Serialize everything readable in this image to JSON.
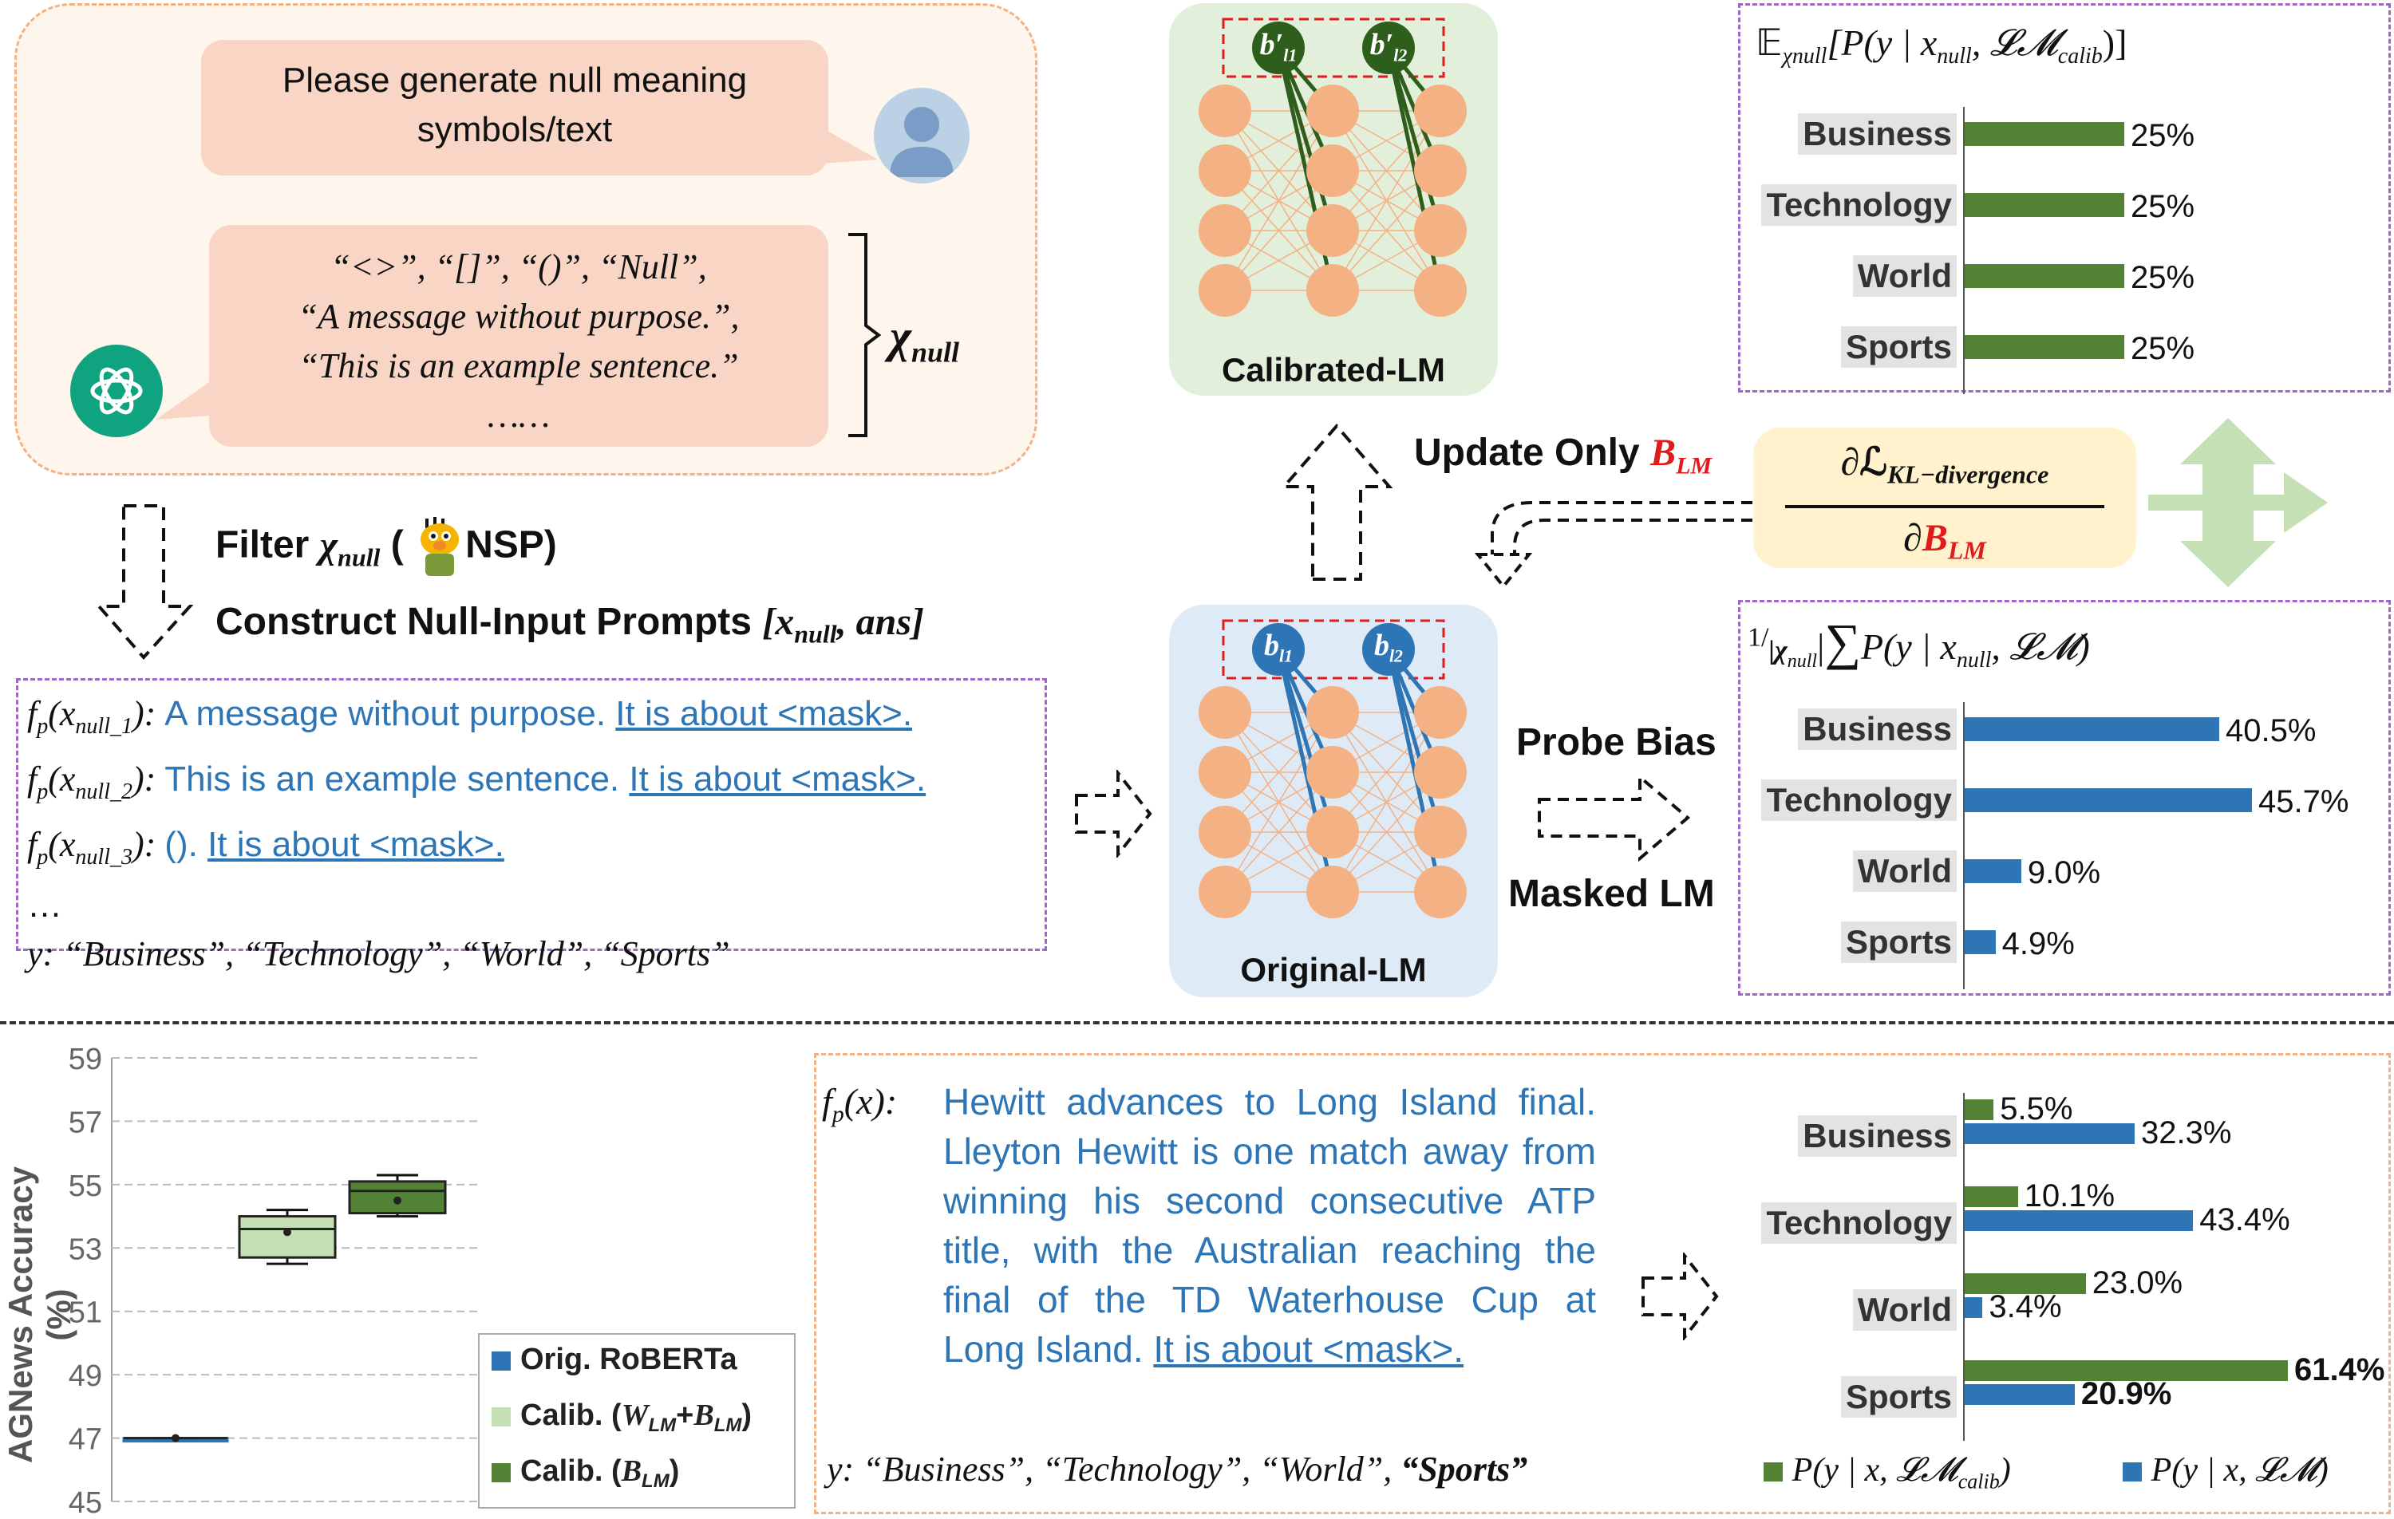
{
  "chat": {
    "prompt_line1": "Please generate null meaning",
    "prompt_line2": "symbols/text",
    "reply_line1": "“<>”, “[]”, “()”, “Null”,",
    "reply_line2": "“A message without purpose.”,",
    "reply_line3": "“This is an example sentence.”",
    "reply_line4": "……",
    "brace_label": "χ",
    "brace_label_sub": "null"
  },
  "steps": {
    "filter_text": "Filter",
    "filter_var": "χ",
    "filter_var_sub": "null",
    "filter_paren_open": " (",
    "filter_nsp": "NSP)",
    "construct_text": "Construct Null-Input Prompts",
    "construct_var": "[x",
    "construct_var_sub": "null",
    "construct_var_end": ", ans]"
  },
  "null_prompts": {
    "rows": [
      {
        "fn": "f",
        "fn_sub": "p",
        "arg": "(x",
        "arg_sub": "null_1",
        "arg_end": "): ",
        "text": "A message without purpose. ",
        "mask": "It is about <mask>."
      },
      {
        "fn": "f",
        "fn_sub": "p",
        "arg": "(x",
        "arg_sub": "null_2",
        "arg_end": "): ",
        "text": "This is an example sentence. ",
        "mask": "It is about <mask>."
      },
      {
        "fn": "f",
        "fn_sub": "p",
        "arg": "(x",
        "arg_sub": "null_3",
        "arg_end": "): ",
        "text": "(). ",
        "mask": "It is about <mask>."
      }
    ],
    "ellipsis": "…",
    "labels_prefix": "y",
    "labels": ": “Business”, “Technology”, “World”, “Sports”"
  },
  "networks": {
    "calibrated_title": "Calibrated-LM",
    "original_title": "Original-LM",
    "calib_bias1": "b′",
    "calib_bias1_sub": "l1",
    "calib_bias2": "b′",
    "calib_bias2_sub": "l2",
    "orig_bias1": "b",
    "orig_bias1_sub": "l1",
    "orig_bias2": "b",
    "orig_bias2_sub": "l2"
  },
  "middle": {
    "update_text": "Update Only ",
    "update_var": "B",
    "update_var_sub": "LM",
    "grad_num": "∂ℒ",
    "grad_num_sub": "KL−divergence",
    "grad_den": "∂",
    "grad_den_var": "B",
    "grad_den_sub": "LM",
    "probe_bias": "Probe Bias",
    "masked_lm": "Masked LM"
  },
  "calib_panel": {
    "title_e": "𝔼",
    "title_e_sub": "χnull",
    "title_rest": "[P(y | x",
    "title_rest_sub": "null",
    "title_rest2": ", 𝓛𝓜",
    "title_rest2_sub": "calib",
    "title_end": ")]",
    "categories": [
      "Business",
      "Technology",
      "World",
      "Sports"
    ],
    "values": [
      25,
      25,
      25,
      25
    ],
    "labels": [
      "25%",
      "25%",
      "25%",
      "25%"
    ],
    "color": "#548235"
  },
  "orig_panel": {
    "title_frac": "1/",
    "title_chi": "|χ",
    "title_chi_sub": "null",
    "title_chi_end": "|",
    "title_sum": "∑",
    "title_rest": "P(y | x",
    "title_rest_sub": "null",
    "title_rest2": ", 𝓛𝓜)",
    "categories": [
      "Business",
      "Technology",
      "World",
      "Sports"
    ],
    "values": [
      40.5,
      45.7,
      9.0,
      4.9
    ],
    "labels": [
      "40.5%",
      "45.7%",
      "9.0%",
      "4.9%"
    ],
    "color": "#2e75b6"
  },
  "boxplot": {
    "ylabel": "AGNews Accuracy (%)",
    "ticks": [
      "59",
      "57",
      "55",
      "53",
      "51",
      "49",
      "47",
      "45"
    ],
    "ylim": [
      45,
      59
    ],
    "legend": [
      {
        "text": "Orig. RoBERTa",
        "color": "#2e75b6"
      },
      {
        "text": "Calib. (",
        "var": "W",
        "sub": "LM",
        "plus": "+",
        "var2": "B",
        "sub2": "LM",
        "end": ")",
        "color": "#c5e0b4"
      },
      {
        "text": "Calib. (",
        "var": "B",
        "sub": "LM",
        "end": ")",
        "color": "#548235"
      }
    ]
  },
  "chart_data": {
    "type": "box",
    "ylabel": "AGNews Accuracy (%)",
    "ylim": [
      45,
      59
    ],
    "series": [
      {
        "name": "Orig. RoBERTa",
        "min": 47.0,
        "q1": 47.0,
        "median": 47.0,
        "q3": 47.0,
        "max": 47.0,
        "mean": 47.0
      },
      {
        "name": "Calib. (W_LM+B_LM)",
        "min": 52.5,
        "q1": 52.7,
        "median": 53.6,
        "q3": 54.0,
        "max": 54.2,
        "mean": 53.5
      },
      {
        "name": "Calib. (B_LM)",
        "min": 54.0,
        "q1": 54.1,
        "median": 54.8,
        "q3": 55.1,
        "max": 55.3,
        "mean": 54.5
      }
    ]
  },
  "example": {
    "fn": "f",
    "fn_sub": "p",
    "fn_arg": "(x): ",
    "lines": [
      "Hewitt advances to Long Island final.",
      "Lleyton Hewitt is one match away from",
      "winning his second consecutive ATP",
      "title, with the Australian reaching the",
      "final of the TD Waterhouse Cup at"
    ],
    "last_line": "Long Island. ",
    "mask": "It is about <mask>.",
    "labels_prefix": "y",
    "labels": ": “Business”, “Technology”, “World”, ",
    "labels_last": "“Sports”"
  },
  "compare_panel": {
    "categories": [
      "Business",
      "Technology",
      "World",
      "Sports"
    ],
    "calib_values": [
      5.5,
      10.1,
      23.0,
      61.4
    ],
    "calib_labels": [
      "5.5%",
      "10.1%",
      "23.0%",
      "61.4%"
    ],
    "orig_values": [
      32.3,
      43.4,
      3.4,
      20.9
    ],
    "orig_labels": [
      "32.3%",
      "43.4%",
      "3.4%",
      "20.9%"
    ],
    "legend_calib": "P(y | x, 𝓛𝓜",
    "legend_calib_sub": "calib",
    "legend_calib_end": ")",
    "legend_orig": "P(y | x, 𝓛𝓜)"
  }
}
